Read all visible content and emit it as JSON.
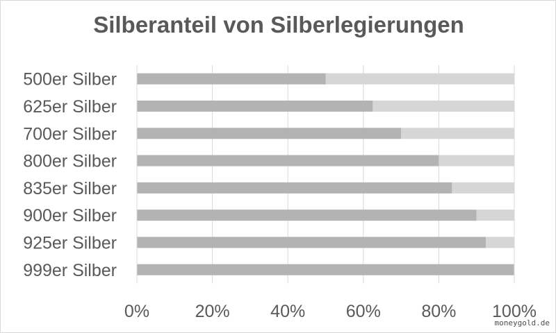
{
  "chart_data": {
    "type": "bar",
    "orientation": "horizontal",
    "stacked": true,
    "title": "Silberanteil von Silberlegierungen",
    "categories": [
      "500er Silber",
      "625er Silber",
      "700er Silber",
      "800er Silber",
      "835er Silber",
      "900er Silber",
      "925er Silber",
      "999er Silber"
    ],
    "series": [
      {
        "values": [
          50,
          62.5,
          70,
          80,
          83.5,
          90,
          92.5,
          99.9
        ],
        "color": "#b3b3b3"
      },
      {
        "values": [
          50,
          37.5,
          30,
          20,
          16.5,
          10,
          7.5,
          0.1
        ],
        "color": "#d6d6d6"
      }
    ],
    "xlim": [
      0,
      100
    ],
    "x_ticks": [
      0,
      20,
      40,
      60,
      80,
      100
    ],
    "x_tick_labels": [
      "0%",
      "20%",
      "40%",
      "60%",
      "80%",
      "100%"
    ],
    "grid": true,
    "legend": "none"
  },
  "watermark": "moneygold.de"
}
